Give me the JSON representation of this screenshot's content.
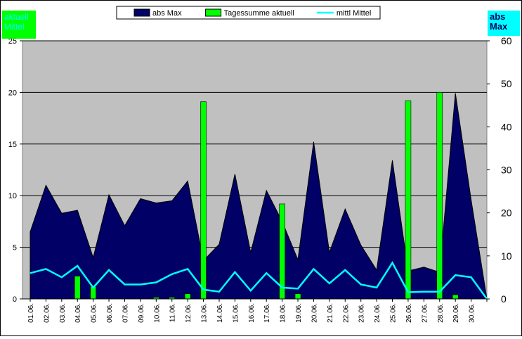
{
  "chart_data": {
    "type": "combo",
    "y_label": "aktuell Mittel",
    "y2_label": "abs Max",
    "categories": [
      "01.06.",
      "02.06.",
      "03.06.",
      "04.06.",
      "05.06.",
      "06.06.",
      "07.06.",
      "09.06.",
      "10.06.",
      "11.06.",
      "12.06.",
      "13.06.",
      "14.06.",
      "15.06.",
      "16.06.",
      "17.06.",
      "18.06.",
      "19.06.",
      "20.06.",
      "21.06.",
      "22.06.",
      "23.06.",
      "24.06.",
      "25.06.",
      "26.06.",
      "27.06.",
      "28.06.",
      "29.06.",
      "30.06.",
      null
    ],
    "series": [
      {
        "name": "abs Max",
        "kind": "area",
        "axis": "y2",
        "color": "#000066",
        "values": [
          15.6,
          26.4,
          19.9,
          20.6,
          9.6,
          24.2,
          17,
          23.3,
          22.3,
          22.8,
          27.4,
          8.9,
          12.7,
          29,
          10.8,
          25.2,
          18,
          9.1,
          36.5,
          10.8,
          20.9,
          12.5,
          6.7,
          32.2,
          6.5,
          7.4,
          6.2,
          47.8,
          23,
          0
        ]
      },
      {
        "name": "Tagessumme aktuell",
        "kind": "bar",
        "axis": "y",
        "color": "#00ff00",
        "values": [
          0,
          0,
          0,
          2.2,
          1.2,
          0,
          0,
          0,
          0.15,
          0.15,
          0.5,
          19.1,
          0,
          0,
          0,
          0,
          9.2,
          0.5,
          0,
          0,
          0,
          0,
          0,
          0,
          19.2,
          0,
          20,
          0.4,
          0,
          0
        ]
      },
      {
        "name": "mittl Mittel",
        "kind": "line",
        "axis": "y",
        "color": "#00ffff",
        "values": [
          2.5,
          2.9,
          2.1,
          3.2,
          1.1,
          2.8,
          1.4,
          1.4,
          1.6,
          2.4,
          2.9,
          0.9,
          0.7,
          2.6,
          0.8,
          2.5,
          1.1,
          1.0,
          2.9,
          1.5,
          2.8,
          1.4,
          1.1,
          3.5,
          0.65,
          0.7,
          0.7,
          2.3,
          2.1,
          0
        ]
      }
    ],
    "ylim": [
      0,
      25
    ],
    "yticks": [
      0,
      5,
      10,
      15,
      20,
      25
    ],
    "y2lim": [
      0,
      60
    ],
    "y2ticks": [
      0,
      10,
      20,
      30,
      40,
      50,
      60
    ],
    "grid": true
  }
}
